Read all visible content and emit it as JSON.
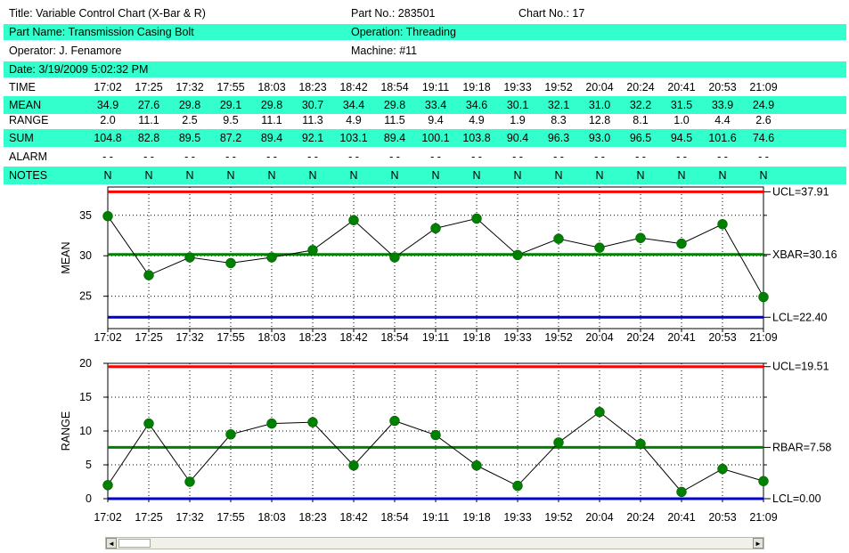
{
  "header": {
    "title": "Title: Variable Control Chart (X-Bar & R)",
    "part_no": "Part No.: 283501",
    "chart_no": "Chart No.: 17",
    "part_name": "Part Name: Transmission Casing Bolt",
    "operation": "Operation: Threading",
    "operator": "Operator: J. Fenamore",
    "machine": "Machine: #11",
    "date": "Date: 3/19/2009 5:02:32 PM"
  },
  "table": {
    "time": {
      "label": "TIME",
      "values": [
        "17:02",
        "17:25",
        "17:32",
        "17:55",
        "18:03",
        "18:23",
        "18:42",
        "18:54",
        "19:11",
        "19:18",
        "19:33",
        "19:52",
        "20:04",
        "20:24",
        "20:41",
        "20:53",
        "21:09"
      ]
    },
    "mean": {
      "label": "MEAN",
      "values": [
        "34.9",
        "27.6",
        "29.8",
        "29.1",
        "29.8",
        "30.7",
        "34.4",
        "29.8",
        "33.4",
        "34.6",
        "30.1",
        "32.1",
        "31.0",
        "32.2",
        "31.5",
        "33.9",
        "24.9"
      ]
    },
    "range": {
      "label": "RANGE",
      "values": [
        "2.0",
        "11.1",
        "2.5",
        "9.5",
        "11.1",
        "11.3",
        "4.9",
        "11.5",
        "9.4",
        "4.9",
        "1.9",
        "8.3",
        "12.8",
        "8.1",
        "1.0",
        "4.4",
        "2.6"
      ]
    },
    "sum": {
      "label": "SUM",
      "values": [
        "104.8",
        "82.8",
        "89.5",
        "87.2",
        "89.4",
        "92.1",
        "103.1",
        "89.4",
        "100.1",
        "103.8",
        "90.4",
        "96.3",
        "93.0",
        "96.5",
        "94.5",
        "101.6",
        "74.6"
      ]
    },
    "alarm": {
      "label": "ALARM",
      "values": [
        "-  -",
        "-  -",
        "-  -",
        "-  -",
        "-  -",
        "-  -",
        "-  -",
        "-  -",
        "-  -",
        "-  -",
        "-  -",
        "-  -",
        "-  -",
        "-  -",
        "-  -",
        "-  -",
        "-  -"
      ]
    },
    "notes": {
      "label": "NOTES",
      "values": [
        "N",
        "N",
        "N",
        "N",
        "N",
        "N",
        "N",
        "N",
        "N",
        "N",
        "N",
        "N",
        "N",
        "N",
        "N",
        "N",
        "N"
      ]
    }
  },
  "colors": {
    "band": "#33ffcc",
    "ucl": "#ff0000",
    "center": "#008000",
    "lcl": "#0000cc",
    "point": "#008000"
  },
  "chart_data": [
    {
      "type": "line",
      "ylabel": "MEAN",
      "x": [
        "17:02",
        "17:25",
        "17:32",
        "17:55",
        "18:03",
        "18:23",
        "18:42",
        "18:54",
        "19:11",
        "19:18",
        "19:33",
        "19:52",
        "20:04",
        "20:24",
        "20:41",
        "20:53",
        "21:09"
      ],
      "values": [
        34.9,
        27.6,
        29.8,
        29.1,
        29.8,
        30.7,
        34.4,
        29.8,
        33.4,
        34.6,
        30.1,
        32.1,
        31.0,
        32.2,
        31.5,
        33.9,
        24.9
      ],
      "ylim": [
        21,
        38.5
      ],
      "yticks": [
        25,
        30,
        35
      ],
      "grid": true,
      "limits": [
        {
          "kind": "ucl",
          "value": 37.91,
          "label": "UCL=37.91"
        },
        {
          "kind": "center",
          "value": 30.16,
          "label": "XBAR=30.16"
        },
        {
          "kind": "lcl",
          "value": 22.4,
          "label": "LCL=22.40"
        }
      ]
    },
    {
      "type": "line",
      "ylabel": "RANGE",
      "x": [
        "17:02",
        "17:25",
        "17:32",
        "17:55",
        "18:03",
        "18:23",
        "18:42",
        "18:54",
        "19:11",
        "19:18",
        "19:33",
        "19:52",
        "20:04",
        "20:24",
        "20:41",
        "20:53",
        "21:09"
      ],
      "values": [
        2.0,
        11.1,
        2.5,
        9.5,
        11.1,
        11.3,
        4.9,
        11.5,
        9.4,
        4.9,
        1.9,
        8.3,
        12.8,
        8.1,
        1.0,
        4.4,
        2.6
      ],
      "ylim": [
        0,
        20
      ],
      "yticks": [
        0,
        5,
        10,
        15,
        20
      ],
      "grid": true,
      "limits": [
        {
          "kind": "ucl",
          "value": 19.51,
          "label": "UCL=19.51"
        },
        {
          "kind": "center",
          "value": 7.58,
          "label": "RBAR=7.58"
        },
        {
          "kind": "lcl",
          "value": 0.0,
          "label": "LCL=0.00"
        }
      ]
    }
  ],
  "scrollbar": {
    "left_arrow": "◄",
    "right_arrow": "►"
  }
}
